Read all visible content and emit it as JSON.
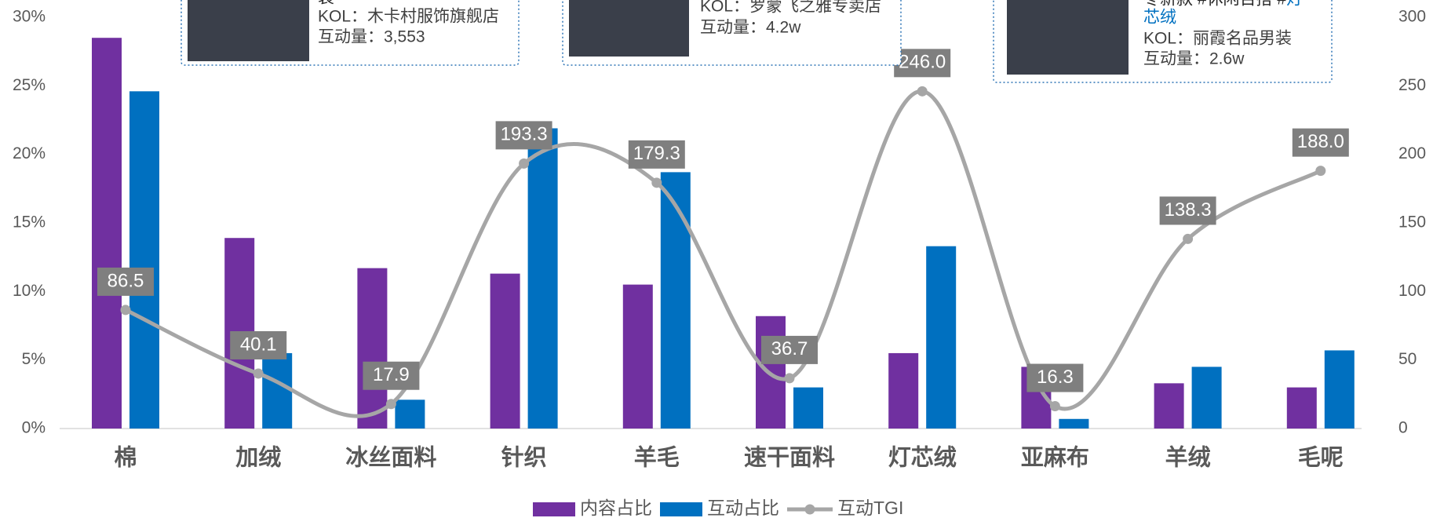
{
  "chart_data": {
    "type": "bar",
    "categories": [
      "棉",
      "加绒",
      "冰丝面料",
      "针织",
      "羊毛",
      "速干面料",
      "灯芯绒",
      "亚麻布",
      "羊绒",
      "毛呢"
    ],
    "series": [
      {
        "name": "内容占比",
        "type": "bar",
        "color": "#7030a0",
        "values": [
          28.5,
          13.9,
          11.7,
          11.3,
          10.5,
          8.2,
          5.5,
          4.5,
          3.3,
          3.0
        ]
      },
      {
        "name": "互动占比",
        "type": "bar",
        "color": "#0070c0",
        "values": [
          24.6,
          5.5,
          2.1,
          21.9,
          18.7,
          3.0,
          13.3,
          0.7,
          4.5,
          5.7
        ]
      },
      {
        "name": "互动TGI",
        "type": "line",
        "axis": "y2",
        "color": "#a6a6a6",
        "values": [
          86.5,
          40.1,
          17.9,
          193.3,
          179.3,
          36.7,
          246.0,
          16.3,
          138.3,
          188.0
        ],
        "value_labels": [
          "86.5",
          "40.1",
          "17.9",
          "193.3",
          "179.3",
          "36.7",
          "246.0",
          "16.3",
          "138.3",
          "188.0"
        ]
      }
    ],
    "ylim": [
      0,
      30
    ],
    "yticks": [
      {
        "value": 0,
        "label": "0%"
      },
      {
        "value": 5,
        "label": "5%"
      },
      {
        "value": 10,
        "label": "10%"
      },
      {
        "value": 15,
        "label": "15%"
      },
      {
        "value": 20,
        "label": "20%"
      },
      {
        "value": 25,
        "label": "25%"
      },
      {
        "value": 30,
        "label": "30%"
      }
    ],
    "y2lim": [
      0,
      300
    ],
    "y2ticks": [
      0,
      50,
      100,
      150,
      200,
      250,
      300
    ],
    "grid": false,
    "legend": "bottom",
    "annotations": [
      {
        "title": "装",
        "kol": "KOL：木卡村服饰旗舰店",
        "interaction": "互动量：3,553"
      },
      {
        "kol": "KOL：罗蒙飞之雅专卖店",
        "interaction": "互动量：4.2w"
      },
      {
        "title": "冬新款 #休闲百搭 #",
        "tag": [
          "灯",
          "芯绒"
        ],
        "kol": "KOL：丽霞名品男装",
        "interaction": "互动量：2.6w"
      }
    ]
  }
}
